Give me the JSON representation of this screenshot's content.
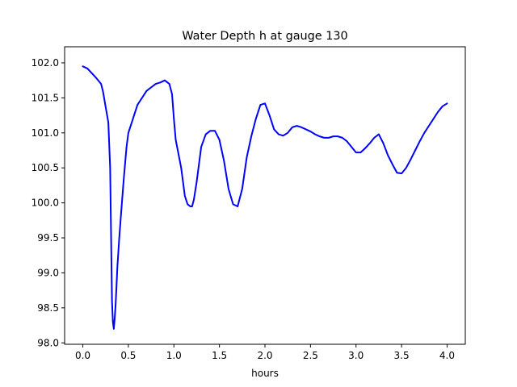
{
  "chart_data": {
    "type": "line",
    "title": "Water Depth h at gauge 130",
    "xlabel": "hours",
    "ylabel": "",
    "xlim": [
      -0.2,
      4.2
    ],
    "ylim": [
      97.98,
      102.23
    ],
    "xticks": [
      0.0,
      0.5,
      1.0,
      1.5,
      2.0,
      2.5,
      3.0,
      3.5,
      4.0
    ],
    "xtick_labels": [
      "0.0",
      "0.5",
      "1.0",
      "1.5",
      "2.0",
      "2.5",
      "3.0",
      "3.5",
      "4.0"
    ],
    "yticks": [
      98.0,
      98.5,
      99.0,
      99.5,
      100.0,
      100.5,
      101.0,
      101.5,
      102.0
    ],
    "ytick_labels": [
      "98.0",
      "98.5",
      "99.0",
      "99.5",
      "100.0",
      "100.5",
      "101.0",
      "101.5",
      "102.0"
    ],
    "grid": false,
    "series": [
      {
        "color": "#0000ff",
        "x": [
          0.0,
          0.05,
          0.1,
          0.15,
          0.2,
          0.22,
          0.24,
          0.26,
          0.28,
          0.3,
          0.32,
          0.33,
          0.34,
          0.35,
          0.36,
          0.38,
          0.4,
          0.42,
          0.45,
          0.48,
          0.5,
          0.55,
          0.6,
          0.65,
          0.7,
          0.75,
          0.8,
          0.85,
          0.9,
          0.95,
          0.98,
          1.0,
          1.02,
          1.05,
          1.08,
          1.1,
          1.12,
          1.15,
          1.18,
          1.2,
          1.22,
          1.25,
          1.28,
          1.3,
          1.35,
          1.4,
          1.45,
          1.5,
          1.55,
          1.6,
          1.65,
          1.7,
          1.75,
          1.8,
          1.85,
          1.9,
          1.95,
          2.0,
          2.05,
          2.1,
          2.15,
          2.2,
          2.25,
          2.3,
          2.35,
          2.4,
          2.45,
          2.5,
          2.55,
          2.6,
          2.65,
          2.7,
          2.75,
          2.8,
          2.85,
          2.9,
          2.95,
          3.0,
          3.05,
          3.1,
          3.15,
          3.2,
          3.25,
          3.3,
          3.35,
          3.4,
          3.45,
          3.5,
          3.55,
          3.6,
          3.65,
          3.7,
          3.75,
          3.8,
          3.85,
          3.9,
          3.95,
          4.0
        ],
        "y": [
          101.95,
          101.92,
          101.85,
          101.78,
          101.7,
          101.6,
          101.45,
          101.3,
          101.15,
          100.5,
          98.6,
          98.3,
          98.2,
          98.35,
          98.55,
          99.1,
          99.5,
          99.85,
          100.35,
          100.8,
          101.0,
          101.2,
          101.4,
          101.5,
          101.6,
          101.65,
          101.7,
          101.72,
          101.75,
          101.7,
          101.55,
          101.2,
          100.9,
          100.7,
          100.5,
          100.3,
          100.1,
          99.98,
          99.95,
          99.95,
          100.05,
          100.3,
          100.6,
          100.8,
          100.98,
          101.03,
          101.03,
          100.9,
          100.6,
          100.2,
          99.98,
          99.95,
          100.2,
          100.65,
          100.95,
          101.2,
          101.4,
          101.42,
          101.25,
          101.05,
          100.98,
          100.96,
          101.0,
          101.08,
          101.1,
          101.08,
          101.05,
          101.02,
          100.98,
          100.95,
          100.93,
          100.93,
          100.95,
          100.95,
          100.93,
          100.88,
          100.8,
          100.72,
          100.72,
          100.78,
          100.85,
          100.93,
          100.98,
          100.85,
          100.68,
          100.55,
          100.43,
          100.42,
          100.5,
          100.62,
          100.75,
          100.88,
          101.0,
          101.1,
          101.2,
          101.3,
          101.38,
          101.42
        ]
      }
    ]
  }
}
